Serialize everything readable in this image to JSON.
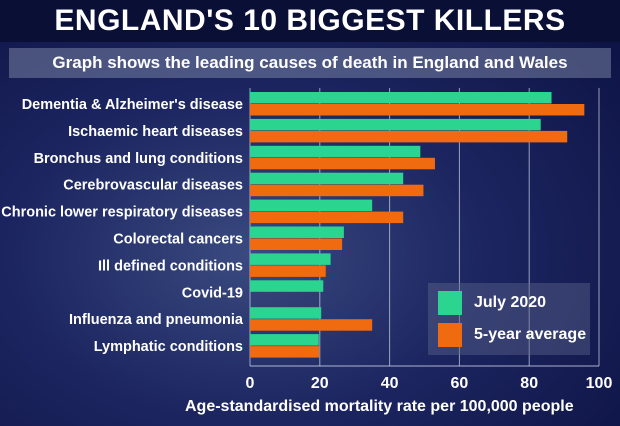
{
  "chart_data": {
    "type": "bar",
    "orientation": "horizontal",
    "title": "ENGLAND'S 10 BIGGEST KILLERS",
    "subtitle": "Graph shows the leading causes of death in England and Wales",
    "categories": [
      "Dementia & Alzheimer's disease",
      "Ischaemic heart diseases",
      "Bronchus and lung conditions",
      "Cerebrovascular diseases",
      "Chronic lower respiratory diseases",
      "Colorectal cancers",
      "Ill defined conditions",
      "Covid-19",
      "Influenza and pneumonia",
      "Lymphatic conditions"
    ],
    "series": [
      {
        "name": "July 2020",
        "color": "#2bd48f",
        "values": [
          86.4,
          83.3,
          48.8,
          43.9,
          35,
          26.9,
          23.1,
          21,
          20.4,
          19.7
        ]
      },
      {
        "name": "5-year average",
        "color": "#f06a10",
        "values": [
          95.8,
          90.9,
          53,
          49.7,
          43.9,
          26.4,
          21.7,
          null,
          35,
          19.8
        ]
      }
    ],
    "xlabel": "Age-standardised mortality rate per 100,000 people",
    "xlim": [
      0,
      100
    ],
    "xticks": [
      "0",
      "20",
      "40",
      "60",
      "80",
      "100"
    ],
    "grid": true,
    "legend_position": "bottom-right"
  }
}
